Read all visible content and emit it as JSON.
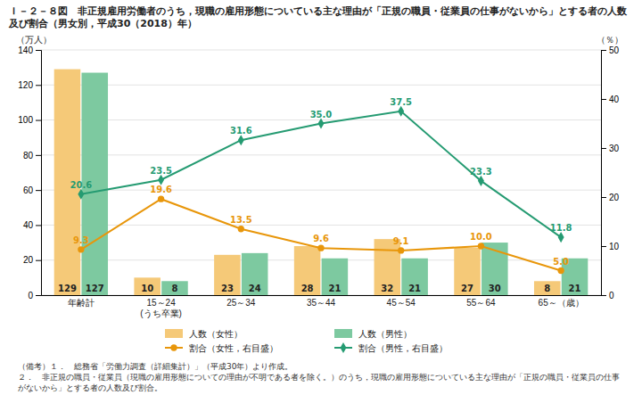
{
  "chart_data": {
    "type": "bar",
    "title": "Ｉ－２－８図　非正規雇用労働者のうち，現職の雇用形態についている主な理由が「正規の職員・従業員の仕事がないから」とする者の人数及び割合（男女別，平成30（2018）年）",
    "categories": [
      "年齢計",
      "15～24\n(うち卒業)",
      "25～34",
      "35～44",
      "45～54",
      "55～64",
      "65～（歳）"
    ],
    "series": [
      {
        "name": "人数（女性）",
        "type": "bar",
        "color": "#F5C978",
        "values": [
          129,
          10,
          23,
          28,
          32,
          27,
          8
        ]
      },
      {
        "name": "人数（男性）",
        "type": "bar",
        "color": "#7DC9A0",
        "values": [
          127,
          8,
          24,
          21,
          21,
          30,
          21
        ]
      },
      {
        "name": "割合（女性，右目盛）",
        "type": "line",
        "axis": "y2",
        "color": "#E8960A",
        "marker": "circle",
        "values": [
          9.3,
          19.6,
          13.5,
          9.6,
          9.1,
          10.0,
          5.0
        ],
        "value_labels": [
          "9.3",
          "19.6",
          "13.5",
          "9.6",
          "9.1",
          "10.0",
          "5.0"
        ]
      },
      {
        "name": "割合（男性，右目盛）",
        "type": "line",
        "axis": "y2",
        "color": "#259B72",
        "marker": "diamond",
        "values": [
          20.6,
          23.5,
          31.6,
          35.0,
          37.5,
          23.3,
          11.8
        ],
        "value_labels": [
          "20.6",
          "23.5",
          "31.6",
          "35.0",
          "37.5",
          "23.3",
          "11.8"
        ]
      }
    ],
    "ylabel": "（万人）",
    "y2label": "（％）",
    "ylim": [
      0,
      140
    ],
    "yticks": [
      0,
      20,
      40,
      60,
      80,
      100,
      120,
      140
    ],
    "y2lim": [
      0,
      50
    ],
    "y2ticks": [
      0,
      10,
      20,
      30,
      40,
      50
    ],
    "grid": true,
    "legend": "bottom",
    "data_labels": true,
    "annotations": [
      "（備考）１．　総務省「労働力調査（詳細集計）」（平成30年）より作成。",
      "２．　非正規の職員・従業員（現職の雇用形態についての理由が不明である者を除く。）のうち，現職の雇用形態についている主な理由が「正規の職員・従業員の仕事がないから」とする者の人数及び割合。"
    ]
  }
}
